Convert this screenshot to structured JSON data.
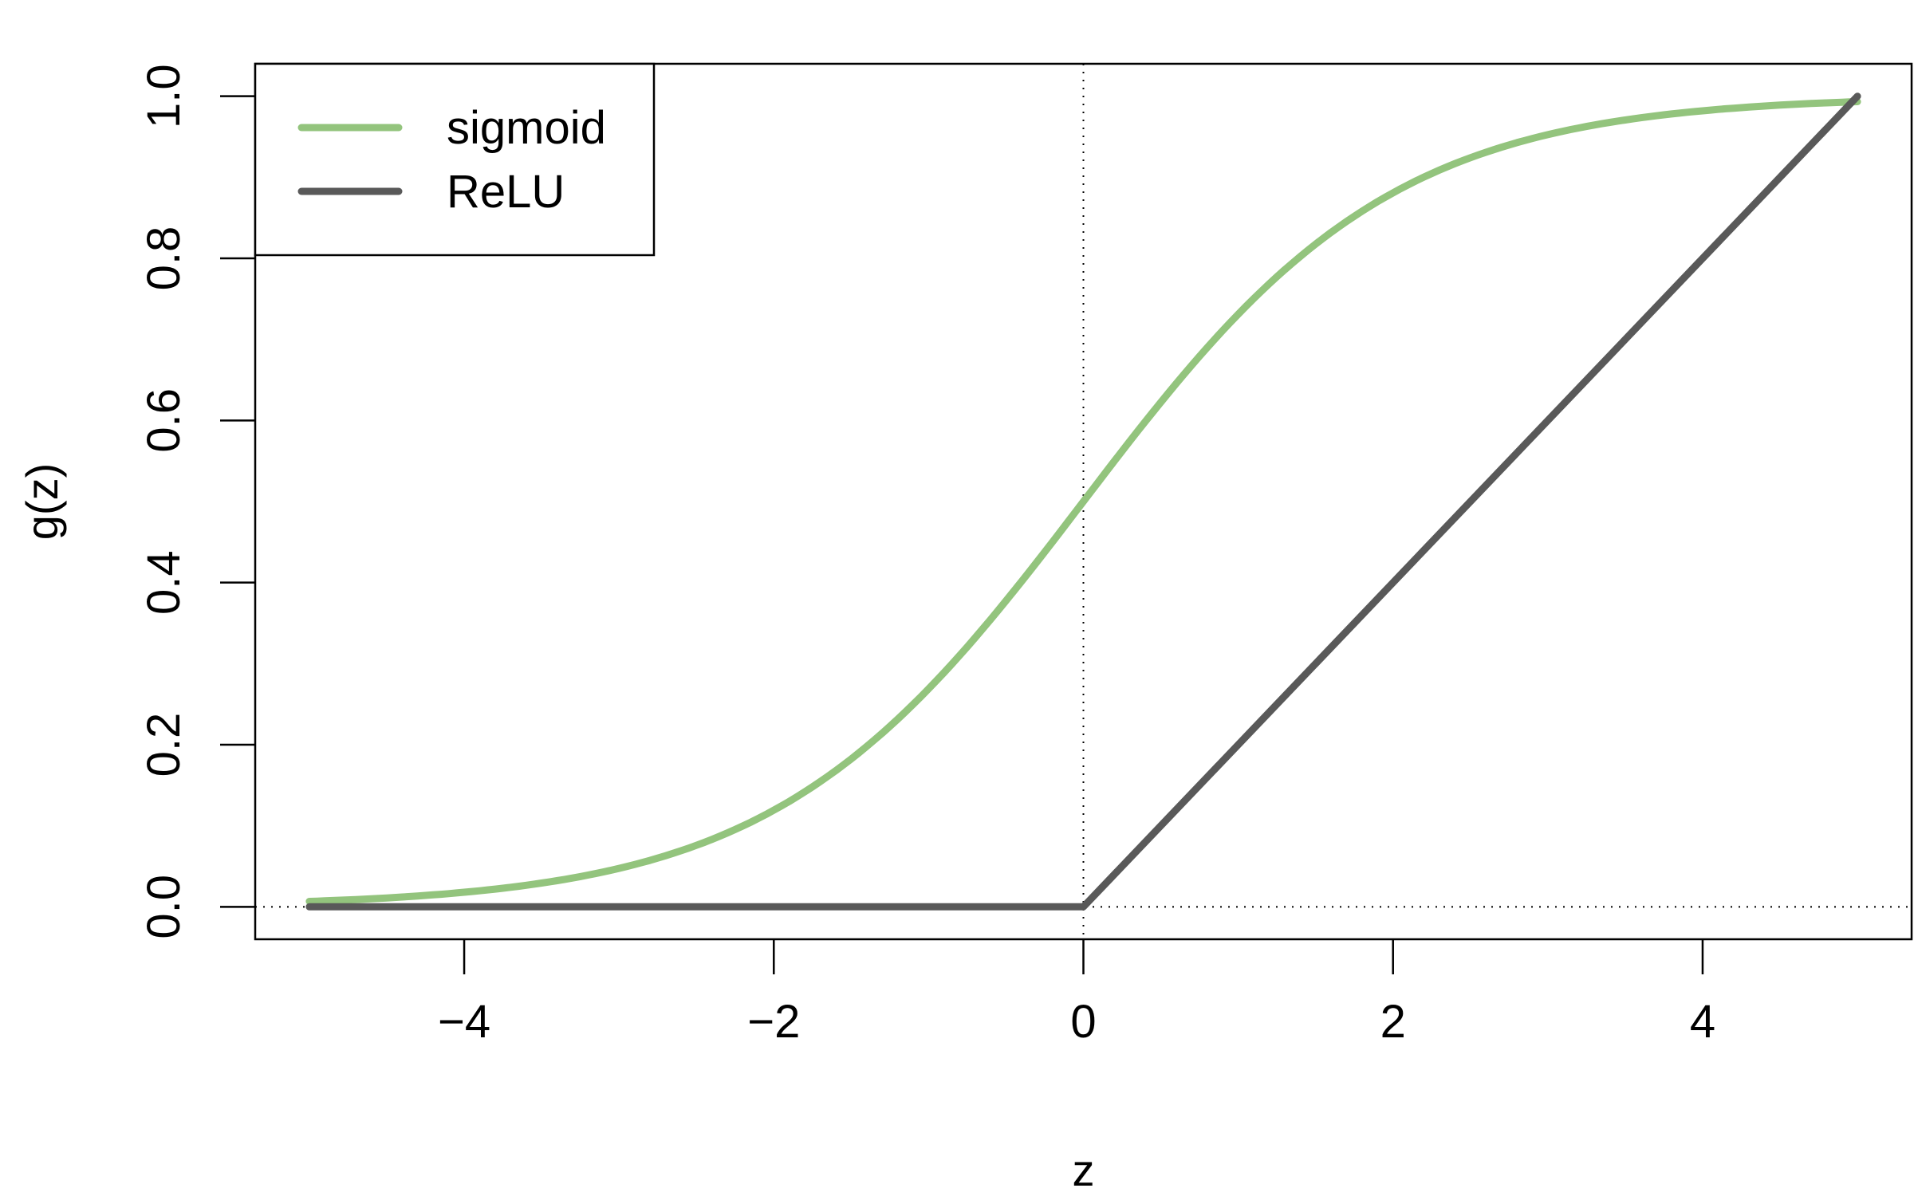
{
  "chart_data": {
    "type": "line",
    "title": "",
    "xlabel": "z",
    "ylabel": "g(z)",
    "xlim": [
      -5.35,
      5.35
    ],
    "ylim": [
      -0.04,
      1.04
    ],
    "x_ticks": [
      -4,
      -2,
      0,
      2,
      4
    ],
    "x_tick_labels": [
      "−4",
      "−2",
      "0",
      "2",
      "4"
    ],
    "y_ticks": [
      0.0,
      0.2,
      0.4,
      0.6,
      0.8,
      1.0
    ],
    "y_tick_labels": [
      "0.0",
      "0.2",
      "0.4",
      "0.6",
      "0.8",
      "1.0"
    ],
    "grid": false,
    "reference_lines": {
      "x": 0,
      "y": 0,
      "style": "dotted"
    },
    "legend_position": "top-left",
    "series": [
      {
        "name": "sigmoid",
        "color": "#93c47d",
        "x": [
          -5,
          -4.5,
          -4,
          -3.5,
          -3,
          -2.5,
          -2,
          -1.5,
          -1,
          -0.5,
          0,
          0.5,
          1,
          1.5,
          2,
          2.5,
          3,
          3.5,
          4,
          4.5,
          5
        ],
        "y": [
          0.0067,
          0.011,
          0.018,
          0.029,
          0.047,
          0.076,
          0.119,
          0.182,
          0.269,
          0.378,
          0.5,
          0.622,
          0.731,
          0.818,
          0.881,
          0.924,
          0.953,
          0.971,
          0.982,
          0.989,
          0.9933
        ]
      },
      {
        "name": "ReLU",
        "color": "#595959",
        "x": [
          -5,
          0,
          5
        ],
        "y": [
          0,
          0,
          1
        ]
      }
    ]
  }
}
